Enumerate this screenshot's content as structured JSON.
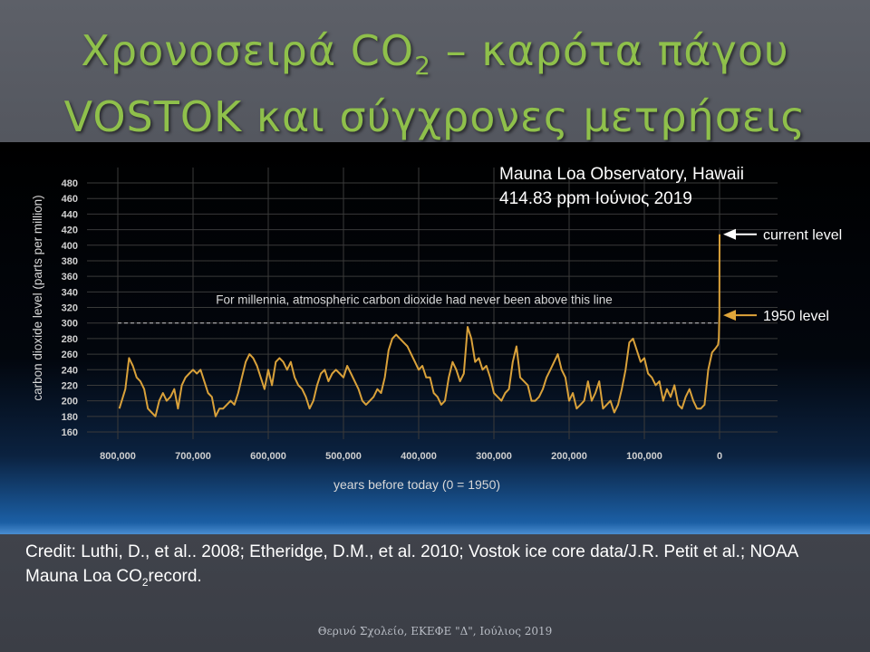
{
  "slide": {
    "title_line1_a": "Χρονοσειρά CO",
    "title_line1_sub": "2",
    "title_line1_b": " – καρότα πάγου",
    "title_line2": "VOSTOK και σύγχρονες μετρήσεις",
    "observatory_line1": "Mauna Loa Observatory, Hawaii",
    "observatory_line2": "414.83 ppm  Ιούνιος 2019",
    "credit_a": "Credit: Luthi, D., et al.. 2008; Etheridge, D.M., et al. 2010; Vostok ice core data/J.R. Petit et al.; NOAA Mauna Loa CO",
    "credit_sub": "2",
    "credit_b": "record.",
    "footer": "Θερινό Σχολείο, ΕΚΕΦΕ \"Δ\", Ιούλιος 2019"
  },
  "chart_data": {
    "type": "line",
    "title": "",
    "xlabel": "years before today (0 = 1950)",
    "ylabel": "carbon dioxide level (parts per million)",
    "xlim": [
      800000,
      0
    ],
    "ylim": [
      160,
      480
    ],
    "x_ticks": [
      800000,
      700000,
      600000,
      500000,
      400000,
      300000,
      200000,
      100000,
      0
    ],
    "x_tick_labels": [
      "800,000",
      "700,000",
      "600,000",
      "500,000",
      "400,000",
      "300,000",
      "200,000",
      "100,000",
      "0"
    ],
    "y_ticks": [
      160,
      180,
      200,
      220,
      240,
      260,
      280,
      300,
      320,
      340,
      360,
      380,
      400,
      420,
      440,
      460,
      480
    ],
    "grid": true,
    "line_color": "#d9a13a",
    "threshold": {
      "value": 300,
      "label": "For millennia, atmospheric carbon dioxide had never been above this line"
    },
    "annotations": [
      {
        "label": "current level",
        "y": 414
      },
      {
        "label": "1950 level",
        "y": 310
      }
    ],
    "series": [
      {
        "x": [
          798000,
          790000,
          785000,
          780000,
          775000,
          770000,
          765000,
          760000,
          755000,
          750000,
          745000,
          740000,
          735000,
          730000,
          725000,
          720000,
          715000,
          710000,
          705000,
          700000,
          695000,
          690000,
          685000,
          680000,
          675000,
          670000,
          665000,
          660000,
          655000,
          650000,
          645000,
          640000,
          635000,
          630000,
          625000,
          620000,
          615000,
          610000,
          605000,
          600000,
          595000,
          590000,
          585000,
          580000,
          575000,
          570000,
          565000,
          560000,
          555000,
          550000,
          545000,
          540000,
          535000,
          530000,
          525000,
          520000,
          515000,
          510000,
          505000,
          500000,
          495000,
          490000,
          485000,
          480000,
          475000,
          470000,
          465000,
          460000,
          455000,
          450000,
          445000,
          440000,
          435000,
          430000,
          425000,
          420000,
          415000,
          410000,
          405000,
          400000,
          395000,
          390000,
          385000,
          380000,
          375000,
          370000,
          365000,
          360000,
          355000,
          350000,
          345000,
          340000,
          335000,
          330000,
          325000,
          320000,
          315000,
          310000,
          305000,
          300000,
          295000,
          290000,
          285000,
          280000,
          275000,
          270000,
          265000,
          260000,
          255000,
          250000,
          245000,
          240000,
          235000,
          230000,
          225000,
          220000,
          215000,
          210000,
          205000,
          200000,
          195000,
          190000,
          185000,
          180000,
          175000,
          170000,
          165000,
          160000,
          155000,
          150000,
          145000,
          140000,
          135000,
          130000,
          125000,
          120000,
          115000,
          110000,
          105000,
          100000,
          95000,
          90000,
          85000,
          80000,
          75000,
          70000,
          65000,
          60000,
          55000,
          50000,
          45000,
          40000,
          35000,
          30000,
          25000,
          20000,
          15000,
          10000,
          5000,
          2000,
          1000,
          500,
          200,
          100,
          0
        ],
        "values": [
          190,
          215,
          255,
          245,
          230,
          225,
          215,
          190,
          185,
          180,
          200,
          210,
          200,
          205,
          215,
          190,
          220,
          230,
          235,
          240,
          235,
          240,
          225,
          210,
          205,
          180,
          190,
          190,
          195,
          200,
          195,
          210,
          230,
          250,
          260,
          255,
          245,
          230,
          215,
          240,
          220,
          250,
          255,
          250,
          240,
          250,
          230,
          220,
          215,
          205,
          190,
          200,
          220,
          235,
          240,
          225,
          235,
          240,
          235,
          230,
          245,
          235,
          225,
          215,
          200,
          195,
          200,
          205,
          215,
          210,
          230,
          265,
          280,
          285,
          280,
          275,
          270,
          260,
          250,
          240,
          245,
          230,
          230,
          210,
          205,
          195,
          200,
          230,
          250,
          240,
          225,
          235,
          295,
          280,
          250,
          255,
          240,
          245,
          230,
          210,
          205,
          200,
          210,
          215,
          250,
          270,
          230,
          225,
          220,
          200,
          200,
          205,
          215,
          230,
          240,
          250,
          260,
          240,
          230,
          200,
          210,
          190,
          195,
          200,
          225,
          200,
          210,
          225,
          190,
          195,
          200,
          185,
          195,
          215,
          240,
          275,
          280,
          265,
          250,
          255,
          235,
          230,
          220,
          225,
          200,
          215,
          205,
          220,
          195,
          190,
          205,
          215,
          200,
          190,
          190,
          195,
          240,
          262,
          268,
          272,
          280,
          300,
          312,
          380,
          414
        ]
      }
    ]
  }
}
